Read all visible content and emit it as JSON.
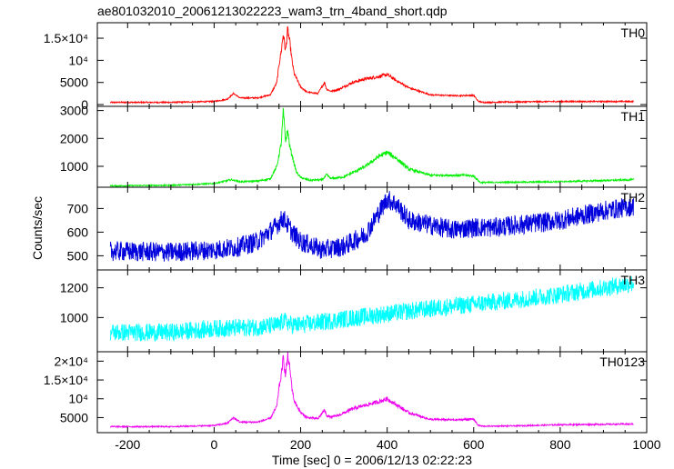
{
  "chart_data": {
    "type": "line",
    "title": "ae801032010_20061213022223_wam3_trn_4band_short.qdp",
    "xlabel": "Time [sec] 0 = 2006/12/13 02:22:23",
    "ylabel": "Counts/sec",
    "xlim": [
      -270,
      1000
    ],
    "x_ticks": [
      -200,
      0,
      200,
      400,
      600,
      800,
      1000
    ],
    "panels": [
      {
        "name": "TH0",
        "color": "#ff0000",
        "ylim": [
          -400,
          18500
        ],
        "ticks": [
          {
            "value": 0,
            "label": "0"
          },
          {
            "value": 5000,
            "label": "5000"
          },
          {
            "value": 10000,
            "label": "10⁴"
          },
          {
            "value": 15000,
            "label": "1.5×10⁴"
          }
        ],
        "x": [
          -240,
          -100,
          0,
          30,
          45,
          60,
          100,
          130,
          145,
          150,
          155,
          160,
          165,
          170,
          175,
          180,
          185,
          200,
          215,
          240,
          255,
          260,
          270,
          290,
          320,
          350,
          380,
          400,
          420,
          450,
          500,
          560,
          600,
          610,
          620,
          700,
          800,
          970
        ],
        "y": [
          500,
          500,
          700,
          1200,
          2500,
          1500,
          1500,
          2200,
          5000,
          9000,
          12000,
          16000,
          12000,
          17000,
          14000,
          10000,
          7000,
          4000,
          2800,
          2500,
          5000,
          3500,
          3000,
          3500,
          5000,
          5800,
          6300,
          6800,
          5500,
          3800,
          2200,
          2000,
          2100,
          800,
          500,
          600,
          700,
          700
        ]
      },
      {
        "name": "TH1",
        "color": "#00ee00",
        "ylim": [
          250,
          3150
        ],
        "ticks": [
          {
            "value": 1000,
            "label": "1000"
          },
          {
            "value": 2000,
            "label": "2000"
          },
          {
            "value": 3000,
            "label": "3000"
          }
        ],
        "x": [
          -240,
          -100,
          0,
          40,
          60,
          100,
          130,
          145,
          155,
          160,
          165,
          170,
          175,
          180,
          190,
          200,
          220,
          250,
          260,
          270,
          300,
          350,
          380,
          400,
          420,
          450,
          500,
          580,
          600,
          615,
          700,
          800,
          970
        ],
        "y": [
          300,
          320,
          380,
          520,
          450,
          470,
          550,
          1000,
          1800,
          3000,
          1900,
          2300,
          1700,
          1400,
          800,
          600,
          500,
          520,
          700,
          560,
          620,
          1000,
          1350,
          1500,
          1300,
          900,
          680,
          680,
          650,
          420,
          430,
          450,
          520
        ]
      },
      {
        "name": "TH2",
        "color": "#0000dd",
        "ylim": [
          440,
          790
        ],
        "ticks": [
          {
            "value": 500,
            "label": "500"
          },
          {
            "value": 600,
            "label": "600"
          },
          {
            "value": 700,
            "label": "700"
          }
        ],
        "x": [
          -240,
          -100,
          0,
          50,
          100,
          140,
          160,
          180,
          200,
          250,
          300,
          350,
          380,
          400,
          420,
          450,
          500,
          550,
          600,
          650,
          700,
          750,
          800,
          850,
          900,
          970
        ],
        "y": [
          520,
          515,
          525,
          535,
          560,
          620,
          660,
          600,
          560,
          525,
          540,
          590,
          680,
          740,
          720,
          650,
          630,
          610,
          620,
          620,
          630,
          640,
          650,
          670,
          690,
          710
        ]
      },
      {
        "name": "TH3",
        "color": "#00ffff",
        "ylim": [
          770,
          1320
        ],
        "ticks": [
          {
            "value": 1000,
            "label": "1000"
          },
          {
            "value": 1200,
            "label": "1200"
          }
        ],
        "x": [
          -240,
          -100,
          0,
          100,
          150,
          160,
          180,
          200,
          300,
          400,
          500,
          600,
          700,
          800,
          900,
          970
        ],
        "y": [
          900,
          900,
          925,
          935,
          950,
          980,
          950,
          950,
          990,
          1025,
          1060,
          1090,
          1120,
          1155,
          1200,
          1230
        ]
      },
      {
        "name": "TH0123",
        "color": "#ee00ee",
        "ylim": [
          1000,
          22500
        ],
        "ticks": [
          {
            "value": 5000,
            "label": "5000"
          },
          {
            "value": 10000,
            "label": "10⁴"
          },
          {
            "value": 15000,
            "label": "1.5×10⁴"
          },
          {
            "value": 20000,
            "label": "2×10⁴"
          }
        ],
        "x": [
          -240,
          -100,
          0,
          30,
          45,
          60,
          100,
          130,
          145,
          150,
          155,
          160,
          165,
          170,
          175,
          180,
          185,
          200,
          215,
          240,
          255,
          260,
          270,
          290,
          320,
          350,
          380,
          400,
          420,
          450,
          500,
          560,
          600,
          610,
          620,
          700,
          800,
          970
        ],
        "y": [
          2600,
          2600,
          2900,
          3500,
          5000,
          3800,
          3800,
          4800,
          8000,
          13000,
          16000,
          21000,
          16000,
          21500,
          18000,
          13000,
          9500,
          6300,
          5000,
          4700,
          7000,
          5600,
          5100,
          5700,
          7300,
          8300,
          9200,
          10000,
          8500,
          6300,
          4500,
          4400,
          4600,
          3000,
          2700,
          2800,
          3100,
          3300
        ]
      }
    ]
  }
}
